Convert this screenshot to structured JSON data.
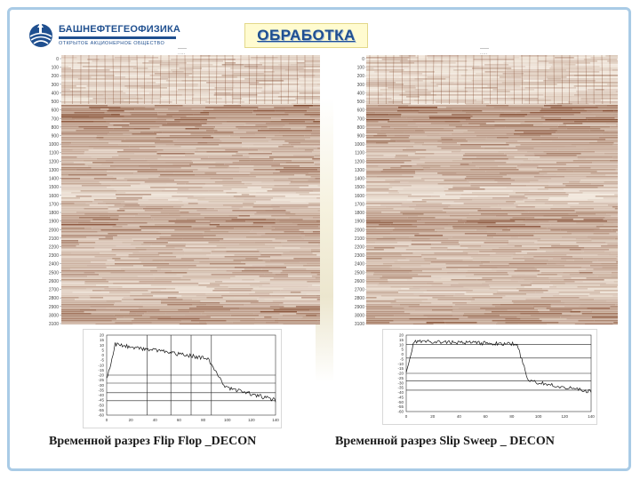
{
  "logo": {
    "name": "БАШНЕФТЕГЕОФИЗИКА",
    "subtitle": "ОТКРЫТОЕ АКЦИОНЕРНОЕ ОБЩЕСТВО"
  },
  "title": "ОБРАБОТКА",
  "panels": [
    {
      "caption": "Временной разрез Flip Flop _DECON",
      "depth_ticks": [
        "0",
        "100",
        "200",
        "300",
        "400",
        "500",
        "600",
        "700",
        "800",
        "900",
        "1000",
        "1100",
        "1200",
        "1300",
        "1400",
        "1500",
        "1600",
        "1700",
        "1800",
        "1900",
        "2000",
        "2100",
        "2200",
        "2300",
        "2400",
        "2500",
        "2600",
        "2700",
        "2800",
        "2900",
        "3000",
        "3100"
      ],
      "spectrum": {
        "y_ticks": [
          "20",
          "15",
          "10",
          "5",
          "0",
          "-5",
          "-10",
          "-15",
          "-20",
          "-25",
          "-30",
          "-35",
          "-40",
          "-45",
          "-50",
          "-55",
          "-60"
        ],
        "x_ticks": [
          "0",
          "20",
          "40",
          "60",
          "80",
          "100",
          "120",
          "140"
        ]
      }
    },
    {
      "caption": "Временной разрез Slip Sweep _ DECON",
      "depth_ticks": [
        "0",
        "100",
        "200",
        "300",
        "400",
        "500",
        "600",
        "700",
        "800",
        "900",
        "1000",
        "1100",
        "1200",
        "1300",
        "1400",
        "1500",
        "1600",
        "1700",
        "1800",
        "1900",
        "2000",
        "2100",
        "2200",
        "2300",
        "2400",
        "2500",
        "2600",
        "2700",
        "2800",
        "2900",
        "3000",
        "3100"
      ],
      "spectrum": {
        "y_ticks": [
          "20",
          "15",
          "10",
          "5",
          "0",
          "-5",
          "-10",
          "-15",
          "-20",
          "-25",
          "-30",
          "-35",
          "-40",
          "-45",
          "-50",
          "-55",
          "-60"
        ],
        "x_ticks": [
          "0",
          "20",
          "40",
          "60",
          "80",
          "100",
          "120",
          "140"
        ]
      }
    }
  ],
  "colors": {
    "frame": "#a9cbe6",
    "brand": "#1f4f8f",
    "title_bg": "#fffbd0",
    "seismic_dark": "#8a4a2a",
    "seismic_light": "#f3ebe2"
  }
}
